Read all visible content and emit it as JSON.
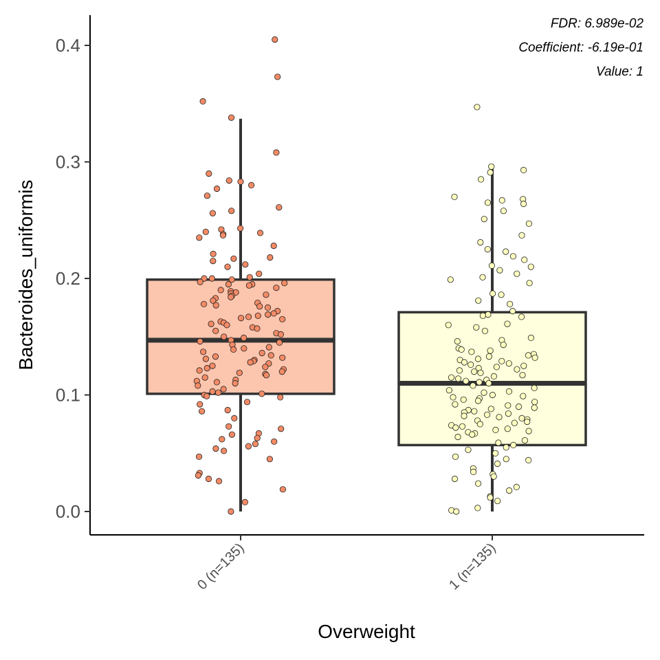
{
  "chart_data": {
    "type": "boxplot",
    "xlabel": "Overweight",
    "ylabel": "Bacteroides_uniformis",
    "ylim": [
      -0.02,
      0.425
    ],
    "yticks": [
      0.0,
      0.1,
      0.2,
      0.3,
      0.4
    ],
    "ytick_labels": [
      "0.0",
      "0.1",
      "0.2",
      "0.3",
      "0.4"
    ],
    "categories": [
      "0 (n=135)",
      "1 (n=135)"
    ],
    "annotations": [
      "FDR: 6.989e-02",
      "Coefficient: -6.19e-01",
      "Value: 1"
    ],
    "grid": false,
    "colors": {
      "box_fills": [
        "#fcc5ae",
        "#ffffdd"
      ],
      "point_fills": [
        "#f28b66",
        "#ffffc0"
      ],
      "line": "#333333"
    },
    "boxes": [
      {
        "category": "0 (n=135)",
        "whisker_low": 0.0,
        "q1": 0.101,
        "median": 0.147,
        "q3": 0.199,
        "whisker_high": 0.337
      },
      {
        "category": "1 (n=135)",
        "whisker_low": 0.0,
        "q1": 0.057,
        "median": 0.11,
        "q3": 0.171,
        "whisker_high": 0.296
      }
    ],
    "points": [
      [
        0.405,
        0.373,
        0.352,
        0.338,
        0.308,
        0.29,
        0.284,
        0.283,
        0.28,
        0.277,
        0.271,
        0.261,
        0.258,
        0.256,
        0.243,
        0.242,
        0.24,
        0.239,
        0.238,
        0.237,
        0.235,
        0.228,
        0.221,
        0.218,
        0.217,
        0.215,
        0.212,
        0.21,
        0.204,
        0.201,
        0.2,
        0.2,
        0.199,
        0.197,
        0.196,
        0.195,
        0.195,
        0.194,
        0.192,
        0.19,
        0.189,
        0.188,
        0.187,
        0.186,
        0.185,
        0.184,
        0.183,
        0.181,
        0.179,
        0.178,
        0.177,
        0.176,
        0.175,
        0.172,
        0.17,
        0.169,
        0.168,
        0.167,
        0.166,
        0.165,
        0.163,
        0.162,
        0.161,
        0.16,
        0.158,
        0.157,
        0.155,
        0.153,
        0.152,
        0.15,
        0.149,
        0.147,
        0.146,
        0.145,
        0.143,
        0.141,
        0.14,
        0.139,
        0.137,
        0.136,
        0.134,
        0.133,
        0.132,
        0.131,
        0.13,
        0.129,
        0.128,
        0.127,
        0.125,
        0.124,
        0.123,
        0.122,
        0.121,
        0.12,
        0.119,
        0.118,
        0.117,
        0.115,
        0.113,
        0.112,
        0.111,
        0.11,
        0.108,
        0.105,
        0.103,
        0.102,
        0.101,
        0.1,
        0.099,
        0.098,
        0.094,
        0.092,
        0.087,
        0.086,
        0.08,
        0.073,
        0.071,
        0.067,
        0.066,
        0.063,
        0.062,
        0.06,
        0.058,
        0.056,
        0.054,
        0.052,
        0.047,
        0.045,
        0.033,
        0.031,
        0.028,
        0.026,
        0.019,
        0.008,
        0.0
      ],
      [
        0.347,
        0.296,
        0.293,
        0.291,
        0.285,
        0.27,
        0.268,
        0.267,
        0.265,
        0.264,
        0.258,
        0.251,
        0.247,
        0.237,
        0.231,
        0.225,
        0.223,
        0.219,
        0.216,
        0.211,
        0.21,
        0.207,
        0.204,
        0.201,
        0.199,
        0.196,
        0.187,
        0.186,
        0.181,
        0.178,
        0.172,
        0.169,
        0.168,
        0.167,
        0.161,
        0.16,
        0.158,
        0.155,
        0.149,
        0.147,
        0.146,
        0.143,
        0.14,
        0.139,
        0.138,
        0.137,
        0.135,
        0.134,
        0.133,
        0.132,
        0.131,
        0.13,
        0.129,
        0.128,
        0.127,
        0.126,
        0.125,
        0.124,
        0.123,
        0.122,
        0.121,
        0.12,
        0.119,
        0.117,
        0.116,
        0.115,
        0.114,
        0.113,
        0.112,
        0.111,
        0.11,
        0.108,
        0.106,
        0.104,
        0.103,
        0.102,
        0.1,
        0.099,
        0.098,
        0.097,
        0.096,
        0.095,
        0.094,
        0.092,
        0.091,
        0.09,
        0.089,
        0.088,
        0.087,
        0.086,
        0.085,
        0.084,
        0.083,
        0.082,
        0.081,
        0.08,
        0.079,
        0.078,
        0.077,
        0.076,
        0.075,
        0.074,
        0.073,
        0.072,
        0.071,
        0.07,
        0.069,
        0.068,
        0.067,
        0.066,
        0.064,
        0.061,
        0.059,
        0.057,
        0.055,
        0.053,
        0.05,
        0.047,
        0.045,
        0.044,
        0.041,
        0.037,
        0.034,
        0.032,
        0.03,
        0.028,
        0.024,
        0.021,
        0.018,
        0.013,
        0.012,
        0.009,
        0.003,
        0.001,
        0.0
      ]
    ]
  }
}
